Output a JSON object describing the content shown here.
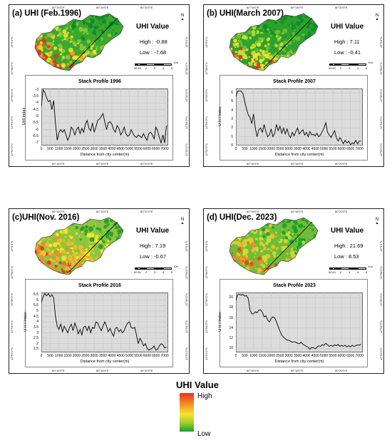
{
  "panels": [
    {
      "id": "a",
      "title": "(a) UHI (Feb.1996)",
      "legend_title": "UHI Value",
      "high_label": "High : -0.88",
      "low_label": "Low : -7.68",
      "map_palette": [
        "#0e8c2b",
        "#3aa92e",
        "#8cc63f",
        "#f0e130",
        "#f29a2e",
        "#e8321e"
      ],
      "coords_top": [
        "80°16'0\"E",
        "80°18'0\"E",
        "80°20'0\"E"
      ],
      "coords_left": [
        "13°0'0\"N",
        "12°58'0\"N",
        "12°56'0\"N",
        "12°54'0\"N",
        "12°52'0\"N"
      ],
      "profile": {
        "title": "Stack Profile 1996",
        "xlabel": "Distance from city center(m)",
        "ylabel": "UHI Index",
        "xlim": [
          0,
          7200
        ],
        "ylim": [
          -7.2,
          -2.9
        ],
        "xticks": [
          0,
          500,
          1000,
          1500,
          2000,
          2500,
          3000,
          3500,
          4000,
          4500,
          5000,
          5500,
          6000,
          6500,
          7000
        ],
        "yticks": [
          -3,
          -3.5,
          -4,
          -4.5,
          -5,
          -5.5,
          -6,
          -6.5,
          -7
        ],
        "x": [
          0,
          100,
          200,
          300,
          400,
          500,
          600,
          700,
          800,
          900,
          1000,
          1100,
          1200,
          1300,
          1400,
          1500,
          1600,
          1700,
          1800,
          1900,
          2000,
          2100,
          2200,
          2300,
          2400,
          2500,
          2600,
          2700,
          2800,
          2900,
          3000,
          3100,
          3200,
          3300,
          3400,
          3500,
          3600,
          3700,
          3800,
          3900,
          4000,
          4100,
          4200,
          4300,
          4400,
          4500,
          4600,
          4700,
          4800,
          4900,
          5000,
          5100,
          5200,
          5300,
          5400,
          5500,
          5600,
          5700,
          5800,
          5900,
          6000,
          6100,
          6200,
          6300,
          6400,
          6500,
          6600,
          6700,
          6800,
          6900,
          7000,
          7100
        ],
        "y": [
          -4.2,
          -3.0,
          -3.2,
          -3.6,
          -3.9,
          -3.8,
          -4.5,
          -3.8,
          -5.5,
          -6.8,
          -6.2,
          -6.0,
          -6.2,
          -6.0,
          -6.4,
          -6.8,
          -6.5,
          -5.8,
          -6.0,
          -6.4,
          -6.0,
          -5.8,
          -6.3,
          -5.9,
          -6.2,
          -5.6,
          -5.3,
          -5.9,
          -6.1,
          -5.5,
          -6.2,
          -5.8,
          -5.3,
          -5.2,
          -5.0,
          -4.8,
          -5.4,
          -6.0,
          -5.5,
          -5.4,
          -5.6,
          -6.0,
          -6.2,
          -5.7,
          -5.9,
          -6.4,
          -6.2,
          -5.8,
          -6.3,
          -6.5,
          -6.4,
          -6.0,
          -6.3,
          -6.5,
          -6.6,
          -6.4,
          -6.5,
          -6.6,
          -6.3,
          -6.6,
          -6.8,
          -6.3,
          -6.2,
          -6.4,
          -6.7,
          -5.8,
          -6.1,
          -6.6,
          -7.0,
          -6.4,
          -7.0,
          -5.7
        ]
      }
    },
    {
      "id": "b",
      "title": "(b) UHI(March 2007)",
      "legend_title": "UHI Value",
      "high_label": "High : 7.11",
      "low_label": "Low : -0.41",
      "map_palette": [
        "#0e8c2b",
        "#2fa12c",
        "#6fbd38",
        "#c5de3a",
        "#f5e52d",
        "#e8321e"
      ],
      "coords_top": [
        "80°16'0\"E",
        "80°18'0\"E",
        "80°20'0\"E"
      ],
      "coords_left": [
        "13°0'0\"N",
        "12°58'0\"N",
        "12°56'0\"N",
        "12°54'0\"N",
        "12°52'0\"N"
      ],
      "profile": {
        "title": "Stack Profile 2007",
        "xlabel": "Distance from city center(m)",
        "ylabel": "U H I Index",
        "xlim": [
          0,
          7200
        ],
        "ylim": [
          0,
          6.5
        ],
        "xticks": [
          0,
          500,
          1000,
          1500,
          2000,
          2500,
          3000,
          3500,
          4000,
          4500,
          5000,
          5500,
          6000,
          6500,
          7000
        ],
        "yticks": [
          0,
          1,
          2,
          3,
          4,
          5,
          6
        ],
        "x": [
          0,
          100,
          200,
          300,
          400,
          500,
          600,
          700,
          800,
          900,
          1000,
          1100,
          1200,
          1300,
          1400,
          1500,
          1600,
          1700,
          1800,
          1900,
          2000,
          2100,
          2200,
          2300,
          2400,
          2500,
          2600,
          2700,
          2800,
          2900,
          3000,
          3100,
          3200,
          3300,
          3400,
          3500,
          3600,
          3700,
          3800,
          3900,
          4000,
          4100,
          4200,
          4300,
          4400,
          4500,
          4600,
          4700,
          4800,
          4900,
          5000,
          5100,
          5200,
          5300,
          5400,
          5500,
          5600,
          5700,
          5800,
          5900,
          6000,
          6100,
          6200,
          6300,
          6400,
          6500,
          6600,
          6700,
          6800,
          6900,
          7000,
          7100
        ],
        "y": [
          5.6,
          6.2,
          6.2,
          6.2,
          5.9,
          5.0,
          4.2,
          3.5,
          3.2,
          2.5,
          3.6,
          2.0,
          1.0,
          1.8,
          2.0,
          1.5,
          2.4,
          1.6,
          1.0,
          1.2,
          1.9,
          1.0,
          1.4,
          2.4,
          1.7,
          2.2,
          1.4,
          2.0,
          1.3,
          1.9,
          1.2,
          0.9,
          1.5,
          1.1,
          1.6,
          2.0,
          1.3,
          1.6,
          1.8,
          1.2,
          1.5,
          1.0,
          1.6,
          1.2,
          1.3,
          1.1,
          1.4,
          1.0,
          1.2,
          1.6,
          2.0,
          2.6,
          1.5,
          1.2,
          0.9,
          1.3,
          1.7,
          0.9,
          0.5,
          0.9,
          0.6,
          0.2,
          0.6,
          0.3,
          0.5,
          0.1,
          0.3,
          0.2,
          0.6,
          0.2,
          0.5,
          0.5
        ]
      }
    },
    {
      "id": "c",
      "title": "(c)UHI(Nov. 2016)",
      "legend_title": "UHI Value",
      "high_label": "High : 7.19",
      "low_label": "Low : -0.67",
      "map_palette": [
        "#2d9a2d",
        "#8cc63f",
        "#f5e52d",
        "#f6b82e",
        "#f08a2a",
        "#e4331d"
      ],
      "coords_top": [
        "80°16'0\"E",
        "80°18'0\"E",
        "80°20'0\"E"
      ],
      "coords_left": [
        "13°0'0\"N",
        "12°58'0\"N",
        "12°56'0\"N",
        "12°54'0\"N",
        "12°52'0\"N"
      ],
      "profile": {
        "title": "Stack Profile 2016",
        "xlabel": "Distance from city center(m)",
        "ylabel": "U H I Index",
        "xlim": [
          0,
          7200
        ],
        "ylim": [
          1.2,
          6.7
        ],
        "xticks": [
          0,
          500,
          1000,
          1500,
          2000,
          2500,
          3000,
          3500,
          4000,
          4500,
          5000,
          5500,
          6000,
          6500,
          7000
        ],
        "yticks": [
          1.5,
          2,
          2.5,
          3,
          3.5,
          4,
          4.5,
          5,
          5.5,
          6,
          6.5
        ],
        "x": [
          0,
          100,
          200,
          300,
          400,
          500,
          600,
          700,
          800,
          900,
          1000,
          1100,
          1200,
          1300,
          1400,
          1500,
          1600,
          1700,
          1800,
          1900,
          2000,
          2100,
          2200,
          2300,
          2400,
          2500,
          2600,
          2700,
          2800,
          2900,
          3000,
          3100,
          3200,
          3300,
          3400,
          3500,
          3600,
          3700,
          3800,
          3900,
          4000,
          4100,
          4200,
          4300,
          4400,
          4500,
          4600,
          4700,
          4800,
          4900,
          5000,
          5100,
          5200,
          5300,
          5400,
          5500,
          5600,
          5700,
          5800,
          5900,
          6000,
          6100,
          6200,
          6300,
          6400,
          6500,
          6600,
          6700,
          6800,
          6900,
          7000,
          7100
        ],
        "y": [
          5.8,
          6.3,
          6.6,
          6.4,
          6.6,
          6.3,
          6.5,
          6.2,
          4.5,
          3.6,
          3.3,
          3.8,
          3.1,
          3.6,
          3.3,
          3.0,
          3.5,
          3.8,
          3.2,
          3.9,
          3.5,
          2.9,
          3.3,
          2.8,
          3.5,
          3.6,
          3.2,
          3.6,
          3.0,
          3.5,
          3.4,
          4.0,
          3.9,
          3.5,
          3.2,
          3.6,
          4.0,
          3.6,
          3.1,
          3.4,
          3.0,
          2.7,
          3.4,
          3.5,
          3.1,
          3.3,
          3.0,
          3.2,
          3.6,
          3.9,
          4.0,
          3.5,
          3.4,
          3.5,
          2.8,
          2.0,
          2.5,
          2.2,
          1.8,
          2.0,
          1.6,
          1.4,
          1.5,
          1.6,
          1.8,
          1.4,
          1.5,
          1.8,
          2.0,
          1.9,
          1.6,
          1.7
        ]
      }
    },
    {
      "id": "d",
      "title": "(d) UHI(Dec. 2023)",
      "legend_title": "UHI Value",
      "high_label": "High : 21.69",
      "low_label": "Low : 8.53",
      "map_palette": [
        "#18a02e",
        "#6fbd38",
        "#c9de3a",
        "#f5c22d",
        "#f08a2a",
        "#e8421d"
      ],
      "coords_top": [
        "80°16'0\"E",
        "80°18'0\"E",
        "80°20'0\"E"
      ],
      "coords_left": [
        "13°0'0\"N",
        "12°58'0\"N",
        "12°56'0\"N",
        "12°54'0\"N",
        "12°52'0\"N"
      ],
      "profile": {
        "title": "Stack Profile 2023",
        "xlabel": "Distance from city center(m)",
        "ylabel": "U H I Index",
        "xlim": [
          0,
          7200
        ],
        "ylim": [
          9.2,
          21.0
        ],
        "xticks": [
          0,
          500,
          1000,
          1500,
          2000,
          2500,
          3000,
          3500,
          4000,
          4500,
          5000,
          5500,
          6000,
          6500,
          7000
        ],
        "yticks": [
          10,
          12,
          14,
          16,
          18,
          20
        ],
        "x": [
          0,
          100,
          200,
          300,
          400,
          500,
          600,
          700,
          800,
          900,
          1000,
          1100,
          1200,
          1300,
          1400,
          1500,
          1600,
          1700,
          1800,
          1900,
          2000,
          2100,
          2200,
          2300,
          2400,
          2500,
          2600,
          2700,
          2800,
          2900,
          3000,
          3100,
          3200,
          3300,
          3400,
          3500,
          3600,
          3700,
          3800,
          3900,
          4000,
          4100,
          4200,
          4300,
          4400,
          4500,
          4600,
          4700,
          4800,
          4900,
          5000,
          5100,
          5200,
          5300,
          5400,
          5500,
          5600,
          5700,
          5800,
          5900,
          6000,
          6100,
          6200,
          6300,
          6400,
          6500,
          6600,
          6700,
          6800,
          6900,
          7000,
          7100
        ],
        "y": [
          19.5,
          20.6,
          20.6,
          20.5,
          20.6,
          20.3,
          20.4,
          19.8,
          17.5,
          16.8,
          16.8,
          17.2,
          17.0,
          17.5,
          17.6,
          17.1,
          16.2,
          16.4,
          15.6,
          15.2,
          15.9,
          16.2,
          16.0,
          15.2,
          14.3,
          13.4,
          12.6,
          12.2,
          11.9,
          11.6,
          11.6,
          11.4,
          11.2,
          11.3,
          11.2,
          11.0,
          10.9,
          11.2,
          10.8,
          10.6,
          10.4,
          10.2,
          9.8,
          10.2,
          10.1,
          9.9,
          10.2,
          10.5,
          10.4,
          10.7,
          10.6,
          11.0,
          10.7,
          10.4,
          10.6,
          10.4,
          10.7,
          10.5,
          10.8,
          10.4,
          10.6,
          10.4,
          10.6,
          10.3,
          10.5,
          10.3,
          10.6,
          10.4,
          10.5,
          10.7,
          10.6,
          10.8
        ]
      }
    }
  ],
  "scale_labels": [
    "0",
    "0.5",
    "1",
    "2",
    "3",
    "4",
    "5"
  ],
  "scale_unit": "Km",
  "north_label": "N",
  "main_legend": {
    "title": "UHI Value",
    "high": "High",
    "low": "Low"
  }
}
